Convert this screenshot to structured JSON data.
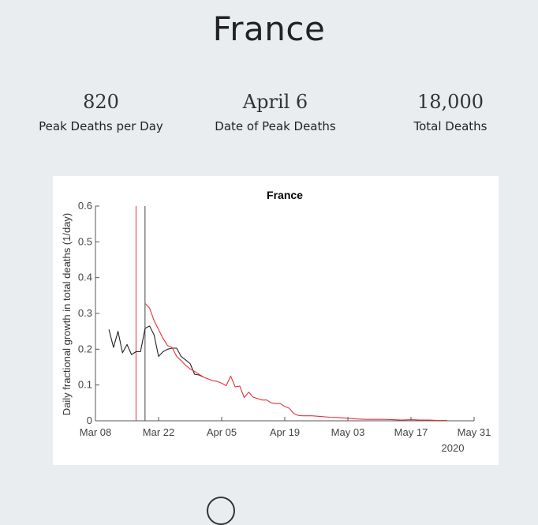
{
  "page": {
    "title": "France",
    "stats": [
      {
        "value": "820",
        "label": "Peak Deaths per Day"
      },
      {
        "value": "April 6",
        "label": "Date of Peak Deaths"
      },
      {
        "value": "18,000",
        "label": "Total Deaths"
      }
    ]
  },
  "colors": {
    "series_red": "#e8303a",
    "series_black": "#222222"
  },
  "chart_data": {
    "type": "line",
    "title": "France",
    "ylabel": "Daily fractional growth in total deaths (1/day)",
    "xlabel": "",
    "x_year_label": "2020",
    "xlim": [
      "2020-03-08",
      "2020-05-31"
    ],
    "ylim": [
      0,
      0.6
    ],
    "x_ticks": [
      {
        "date": "2020-03-08",
        "label": "Mar 08"
      },
      {
        "date": "2020-03-22",
        "label": "Mar 22"
      },
      {
        "date": "2020-04-05",
        "label": "Apr 05"
      },
      {
        "date": "2020-04-19",
        "label": "Apr 19"
      },
      {
        "date": "2020-05-03",
        "label": "May 03"
      },
      {
        "date": "2020-05-17",
        "label": "May 17"
      },
      {
        "date": "2020-05-31",
        "label": "May 31"
      }
    ],
    "y_ticks": [
      {
        "value": 0,
        "label": "0"
      },
      {
        "value": 0.1,
        "label": "0.1"
      },
      {
        "value": 0.2,
        "label": "0.2"
      },
      {
        "value": 0.3,
        "label": "0.3"
      },
      {
        "value": 0.4,
        "label": "0.4"
      },
      {
        "value": 0.5,
        "label": "0.5"
      },
      {
        "value": 0.6,
        "label": "0.6"
      }
    ],
    "grid": false,
    "vlines": [
      {
        "x": "2020-03-17",
        "color": "#e8303a"
      },
      {
        "x": "2020-03-19",
        "color": "#444444"
      }
    ],
    "series": [
      {
        "color": "#222222",
        "points": [
          [
            "2020-03-11",
            0.255
          ],
          [
            "2020-03-12",
            0.205
          ],
          [
            "2020-03-13",
            0.25
          ],
          [
            "2020-03-14",
            0.19
          ],
          [
            "2020-03-15",
            0.213
          ],
          [
            "2020-03-16",
            0.185
          ],
          [
            "2020-03-17",
            0.193
          ],
          [
            "2020-03-18",
            0.193
          ],
          [
            "2020-03-19",
            0.258
          ],
          [
            "2020-03-20",
            0.265
          ],
          [
            "2020-03-21",
            0.24
          ],
          [
            "2020-03-22",
            0.18
          ],
          [
            "2020-03-23",
            0.193
          ],
          [
            "2020-03-24",
            0.2
          ],
          [
            "2020-03-25",
            0.203
          ],
          [
            "2020-03-26",
            0.203
          ],
          [
            "2020-03-27",
            0.18
          ],
          [
            "2020-03-28",
            0.17
          ],
          [
            "2020-03-29",
            0.16
          ],
          [
            "2020-03-30",
            0.13
          ],
          [
            "2020-03-31",
            0.128
          ],
          [
            "2020-04-01",
            0.122
          ]
        ]
      },
      {
        "color": "#e8303a",
        "points": [
          [
            "2020-03-19",
            0.328
          ],
          [
            "2020-03-20",
            0.315
          ],
          [
            "2020-03-21",
            0.28
          ],
          [
            "2020-03-22",
            0.255
          ],
          [
            "2020-03-23",
            0.23
          ],
          [
            "2020-03-24",
            0.21
          ],
          [
            "2020-03-25",
            0.205
          ],
          [
            "2020-03-26",
            0.18
          ],
          [
            "2020-03-27",
            0.168
          ],
          [
            "2020-03-28",
            0.155
          ],
          [
            "2020-03-29",
            0.145
          ],
          [
            "2020-03-30",
            0.138
          ],
          [
            "2020-03-31",
            0.13
          ],
          [
            "2020-04-01",
            0.122
          ],
          [
            "2020-04-02",
            0.117
          ],
          [
            "2020-04-03",
            0.112
          ],
          [
            "2020-04-04",
            0.11
          ],
          [
            "2020-04-05",
            0.105
          ],
          [
            "2020-04-06",
            0.098
          ],
          [
            "2020-04-07",
            0.125
          ],
          [
            "2020-04-08",
            0.095
          ],
          [
            "2020-04-09",
            0.097
          ],
          [
            "2020-04-10",
            0.065
          ],
          [
            "2020-04-11",
            0.08
          ],
          [
            "2020-04-12",
            0.066
          ],
          [
            "2020-04-13",
            0.062
          ],
          [
            "2020-04-14",
            0.058
          ],
          [
            "2020-04-15",
            0.058
          ],
          [
            "2020-04-16",
            0.05
          ],
          [
            "2020-04-17",
            0.048
          ],
          [
            "2020-04-18",
            0.048
          ],
          [
            "2020-04-19",
            0.04
          ],
          [
            "2020-04-20",
            0.035
          ],
          [
            "2020-04-21",
            0.02
          ],
          [
            "2020-04-22",
            0.015
          ],
          [
            "2020-04-23",
            0.014
          ],
          [
            "2020-04-25",
            0.014
          ],
          [
            "2020-04-27",
            0.012
          ],
          [
            "2020-04-29",
            0.01
          ],
          [
            "2020-05-01",
            0.009
          ],
          [
            "2020-05-03",
            0.007
          ],
          [
            "2020-05-05",
            0.005
          ],
          [
            "2020-05-07",
            0.004
          ],
          [
            "2020-05-09",
            0.004
          ],
          [
            "2020-05-11",
            0.004
          ],
          [
            "2020-05-13",
            0.003
          ],
          [
            "2020-05-15",
            0.002
          ],
          [
            "2020-05-17",
            0.003
          ],
          [
            "2020-05-19",
            0.002
          ],
          [
            "2020-05-21",
            0.002
          ],
          [
            "2020-05-23",
            0.001
          ],
          [
            "2020-05-25",
            0.001
          ]
        ]
      }
    ]
  }
}
